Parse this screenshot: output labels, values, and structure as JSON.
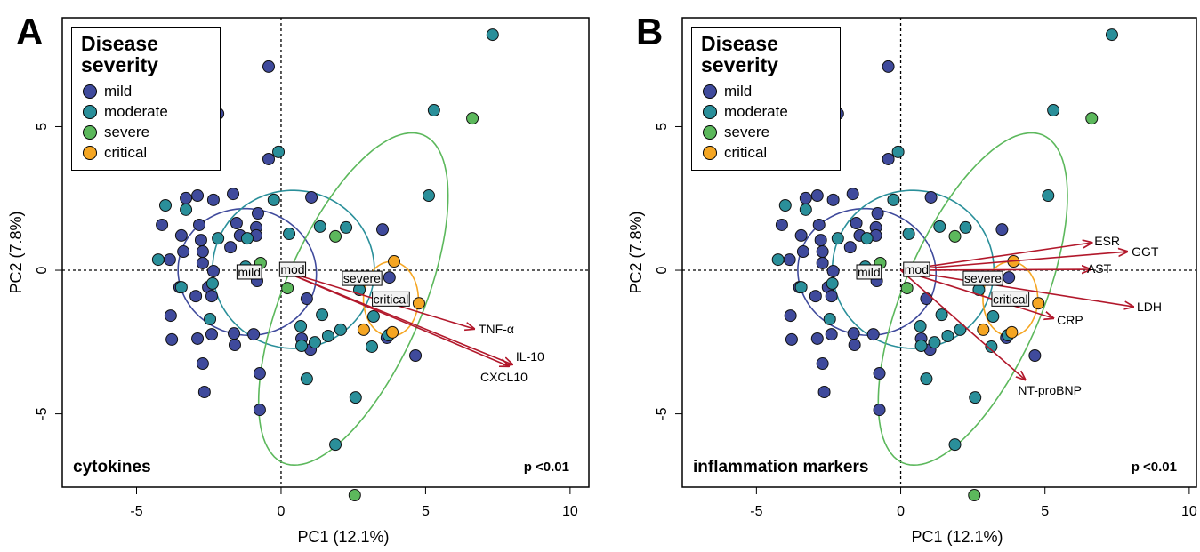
{
  "chart_data": [
    {
      "type": "biplot",
      "panel": "A",
      "legend_title": "Disease severity",
      "annotation": "cytokines",
      "p_value": "p <0.01",
      "xlabel": "PC1 (12.1%)",
      "ylabel": "PC2 (7.8%)",
      "xlim": [
        -7.57,
        10.65
      ],
      "ylim": [
        -7.55,
        8.79
      ],
      "xticks": [
        -5,
        0,
        5,
        10
      ],
      "yticks": [
        -5,
        0,
        5
      ],
      "series": [
        {
          "name": "mild",
          "color": "#3f4a9c",
          "x": [
            -0.43,
            -2.18,
            -0.43,
            -2.89,
            -3.29,
            -1.66,
            -2.34,
            -0.8,
            -1.54,
            -4.12,
            -2.83,
            -3.45,
            -2.77,
            -1.42,
            -0.86,
            -0.86,
            -1.75,
            -2.71,
            -3.38,
            -3.85,
            -2.71,
            -2.34,
            -0.83,
            -2.52,
            -3.51,
            -2.95,
            -2.4,
            -3.82,
            -3.78,
            -2.89,
            -2.4,
            -1.63,
            -1.6,
            -0.95,
            -2.71,
            -0.74,
            -2.65,
            -0.74,
            1.05,
            0.89,
            0.71,
            1.02,
            3.51,
            3.66,
            4.65,
            3.75
          ],
          "values": [
            7.09,
            5.45,
            3.87,
            2.6,
            2.51,
            2.66,
            2.45,
            1.98,
            1.64,
            1.58,
            1.58,
            1.21,
            1.05,
            1.21,
            1.49,
            1.21,
            0.8,
            0.65,
            0.65,
            0.37,
            0.25,
            -0.03,
            -0.37,
            -0.59,
            -0.59,
            -0.9,
            -0.9,
            -1.58,
            -2.41,
            -2.38,
            -2.23,
            -2.2,
            -2.6,
            -2.23,
            -3.25,
            -3.59,
            -4.24,
            -4.86,
            2.54,
            -0.99,
            -2.38,
            -2.76,
            1.42,
            -2.35,
            -2.97,
            -0.25
          ]
        },
        {
          "name": "moderate",
          "color": "#2a8f9a",
          "x": [
            7.32,
            5.29,
            -2.62,
            -0.09,
            5.11,
            -4.0,
            -3.29,
            -0.25,
            -2.18,
            -1.17,
            0.28,
            -4.25,
            -2.37,
            -3.45,
            -2.46,
            0.68,
            0.71,
            1.17,
            1.63,
            2.06,
            1.42,
            0.89,
            2.58,
            1.88,
            1.35,
            2.25,
            3.2,
            3.14,
            3.72,
            2.71,
            -1.23
          ],
          "values": [
            8.2,
            5.57,
            4.55,
            4.12,
            2.6,
            2.26,
            2.11,
            2.45,
            1.11,
            1.11,
            1.27,
            0.37,
            -0.46,
            -0.59,
            -1.7,
            -1.95,
            -2.63,
            -2.51,
            -2.29,
            -2.07,
            -1.55,
            -3.78,
            -4.43,
            -6.07,
            1.52,
            1.49,
            -1.61,
            -2.66,
            -2.26,
            -0.68,
            0.12
          ]
        },
        {
          "name": "severe",
          "color": "#5cb85c",
          "x": [
            6.62,
            1.88,
            0.22,
            2.55,
            -0.71
          ],
          "values": [
            5.29,
            1.18,
            -0.62,
            -7.83,
            0.25
          ]
        },
        {
          "name": "critical",
          "color": "#f5a623",
          "x": [
            3.91,
            4.77,
            2.86,
            3.85
          ],
          "values": [
            0.31,
            -1.15,
            -2.07,
            -2.16
          ]
        }
      ],
      "ellipses": [
        {
          "color": "#3f4a9c",
          "cx": -1.17,
          "cy": -0.06,
          "rx": 2.2,
          "ry": 2.4,
          "angle": 80
        },
        {
          "color": "#2a8f9a",
          "cx": 0.43,
          "cy": 0.03,
          "rx": 2.75,
          "ry": 2.8,
          "angle": 80
        },
        {
          "color": "#5cb85c",
          "cx": 2.5,
          "cy": -1.0,
          "rx": 6.2,
          "ry": 2.4,
          "angle": 67
        },
        {
          "color": "#f5a623",
          "cx": 3.8,
          "cy": -1.0,
          "rx": 1.3,
          "ry": 0.95,
          "angle": 90
        }
      ],
      "centroids": [
        {
          "label": "mild",
          "x": -1.1,
          "y": -0.06
        },
        {
          "label": "mod",
          "x": 0.4,
          "y": 0.03
        },
        {
          "label": "severe",
          "x": 2.8,
          "y": -0.28
        },
        {
          "label": "critical",
          "x": 3.8,
          "y": -1.0
        }
      ],
      "arrow_color": "#b2182b",
      "loadings": [
        {
          "name": "TNF-α",
          "x": 6.68,
          "y": -2.04
        },
        {
          "name": "IL-10",
          "x": 8.0,
          "y": -3.28
        },
        {
          "name": "CXCL10",
          "x": 7.88,
          "y": -3.34
        }
      ]
    },
    {
      "type": "biplot",
      "panel": "B",
      "legend_title": "Disease severity",
      "annotation": "inflammation markers",
      "p_value": "p <0.01",
      "xlabel": "PC1 (12.1%)",
      "ylabel": "PC2 (7.8%)",
      "xlim": [
        -7.57,
        10.25
      ],
      "ylim": [
        -7.55,
        8.79
      ],
      "xticks": [
        -5,
        0,
        5,
        10
      ],
      "yticks": [
        -5,
        0,
        5
      ],
      "series": [
        {
          "name": "mild",
          "color": "#3f4a9c",
          "x": [
            -0.43,
            -2.18,
            -0.43,
            -2.89,
            -3.29,
            -1.66,
            -2.34,
            -0.8,
            -1.54,
            -4.12,
            -2.83,
            -3.45,
            -2.77,
            -1.42,
            -0.86,
            -0.86,
            -1.75,
            -2.71,
            -3.38,
            -3.85,
            -2.71,
            -2.34,
            -0.83,
            -2.52,
            -3.51,
            -2.95,
            -2.4,
            -3.82,
            -3.78,
            -2.89,
            -2.4,
            -1.63,
            -1.6,
            -0.95,
            -2.71,
            -0.74,
            -2.65,
            -0.74,
            1.05,
            0.89,
            0.71,
            1.02,
            3.51,
            3.66,
            4.65,
            3.75
          ],
          "values": [
            7.09,
            5.45,
            3.87,
            2.6,
            2.51,
            2.66,
            2.45,
            1.98,
            1.64,
            1.58,
            1.58,
            1.21,
            1.05,
            1.21,
            1.49,
            1.21,
            0.8,
            0.65,
            0.65,
            0.37,
            0.25,
            -0.03,
            -0.37,
            -0.59,
            -0.59,
            -0.9,
            -0.9,
            -1.58,
            -2.41,
            -2.38,
            -2.23,
            -2.2,
            -2.6,
            -2.23,
            -3.25,
            -3.59,
            -4.24,
            -4.86,
            2.54,
            -0.99,
            -2.38,
            -2.76,
            1.42,
            -2.35,
            -2.97,
            -0.25
          ]
        },
        {
          "name": "moderate",
          "color": "#2a8f9a",
          "x": [
            7.32,
            5.29,
            -2.62,
            -0.09,
            5.11,
            -4.0,
            -3.29,
            -0.25,
            -2.18,
            -1.17,
            0.28,
            -4.25,
            -2.37,
            -3.45,
            -2.46,
            0.68,
            0.71,
            1.17,
            1.63,
            2.06,
            1.42,
            0.89,
            2.58,
            1.88,
            1.35,
            2.25,
            3.2,
            3.14,
            3.72,
            2.71,
            -1.23
          ],
          "values": [
            8.2,
            5.57,
            4.55,
            4.12,
            2.6,
            2.26,
            2.11,
            2.45,
            1.11,
            1.11,
            1.27,
            0.37,
            -0.46,
            -0.59,
            -1.7,
            -1.95,
            -2.63,
            -2.51,
            -2.29,
            -2.07,
            -1.55,
            -3.78,
            -4.43,
            -6.07,
            1.52,
            1.49,
            -1.61,
            -2.66,
            -2.26,
            -0.68,
            0.12
          ]
        },
        {
          "name": "severe",
          "color": "#5cb85c",
          "x": [
            6.62,
            1.88,
            0.22,
            2.55,
            -0.71
          ],
          "values": [
            5.29,
            1.18,
            -0.62,
            -7.83,
            0.25
          ]
        },
        {
          "name": "critical",
          "color": "#f5a623",
          "x": [
            3.91,
            4.77,
            2.86,
            3.85
          ],
          "values": [
            0.31,
            -1.15,
            -2.07,
            -2.16
          ]
        }
      ],
      "ellipses": [
        {
          "color": "#3f4a9c",
          "cx": -1.17,
          "cy": -0.06,
          "rx": 2.2,
          "ry": 2.4,
          "angle": 80
        },
        {
          "color": "#2a8f9a",
          "cx": 0.43,
          "cy": 0.03,
          "rx": 2.75,
          "ry": 2.8,
          "angle": 80
        },
        {
          "color": "#5cb85c",
          "cx": 2.5,
          "cy": -1.0,
          "rx": 6.2,
          "ry": 2.4,
          "angle": 67
        },
        {
          "color": "#f5a623",
          "cx": 3.8,
          "cy": -1.0,
          "rx": 1.3,
          "ry": 0.95,
          "angle": 90
        }
      ],
      "centroids": [
        {
          "label": "mild",
          "x": -1.1,
          "y": -0.06
        },
        {
          "label": "mod",
          "x": 0.55,
          "y": 0.03
        },
        {
          "label": "severe",
          "x": 2.85,
          "y": -0.28
        },
        {
          "label": "critical",
          "x": 3.8,
          "y": -1.0
        }
      ],
      "arrow_color": "#b2182b",
      "loadings": [
        {
          "name": "ESR",
          "x": 6.62,
          "y": 0.96
        },
        {
          "name": "GGT",
          "x": 7.85,
          "y": 0.65
        },
        {
          "name": "AST",
          "x": 6.58,
          "y": 0.03
        },
        {
          "name": "LDH",
          "x": 8.06,
          "y": -1.27
        },
        {
          "name": "CRP",
          "x": 5.29,
          "y": -1.67
        },
        {
          "name": "NT-proBNP",
          "x": 4.31,
          "y": -3.81
        }
      ]
    }
  ]
}
